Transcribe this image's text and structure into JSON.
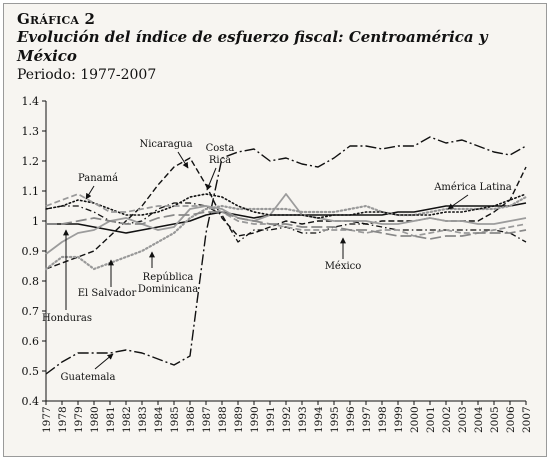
{
  "header": {
    "label": "Gráfica 2",
    "title": "Evolución del índice de esfuerzo fiscal: Centroamérica y México",
    "subtitle": "Periodo: 1977-2007"
  },
  "chart_data": {
    "type": "line",
    "ylim": [
      0.4,
      1.4
    ],
    "yticks": [
      "0.4",
      "0.5",
      "0.6",
      "0.7",
      "0.8",
      "0.9",
      "1",
      "1.1",
      "1.2",
      "1.3",
      "1.4"
    ],
    "x": [
      "1977",
      "1978",
      "1979",
      "1980",
      "1981",
      "1982",
      "1983",
      "1984",
      "1985",
      "1986",
      "1987",
      "1988",
      "1989",
      "1990",
      "1991",
      "1992",
      "1993",
      "1994",
      "1995",
      "1996",
      "1997",
      "1998",
      "1999",
      "2000",
      "2001",
      "2002",
      "2003",
      "2004",
      "2005",
      "2006",
      "2007"
    ],
    "grid": false,
    "series": [
      {
        "name": "América Latina",
        "style": "solid",
        "color": "#111111",
        "width": 1.6,
        "values": [
          0.99,
          0.99,
          0.99,
          0.98,
          0.97,
          0.96,
          0.97,
          0.98,
          0.99,
          1.0,
          1.02,
          1.03,
          1.02,
          1.01,
          1.02,
          1.02,
          1.02,
          1.02,
          1.02,
          1.02,
          1.02,
          1.02,
          1.03,
          1.03,
          1.04,
          1.05,
          1.05,
          1.05,
          1.05,
          1.05,
          1.06
        ]
      },
      {
        "name": "Guatemala",
        "style": "longdash-dot",
        "color": "#111111",
        "width": 1.4,
        "values": [
          0.49,
          0.53,
          0.56,
          0.56,
          0.56,
          0.57,
          0.56,
          0.54,
          0.52,
          0.55,
          0.96,
          1.21,
          1.23,
          1.24,
          1.2,
          1.21,
          1.19,
          1.18,
          1.21,
          1.25,
          1.25,
          1.24,
          1.25,
          1.25,
          1.28,
          1.26,
          1.27,
          1.25,
          1.23,
          1.22,
          1.25
        ]
      },
      {
        "name": "Nicaragua",
        "style": "dash",
        "color": "#111111",
        "width": 1.4,
        "values": [
          0.84,
          0.86,
          0.88,
          0.9,
          0.95,
          1.0,
          1.05,
          1.12,
          1.18,
          1.21,
          1.12,
          1.01,
          0.95,
          0.96,
          0.98,
          1.0,
          0.99,
          1.0,
          1.0,
          1.0,
          0.99,
          1.0,
          1.0,
          1.0,
          1.01,
          1.0,
          1.0,
          1.0,
          1.03,
          1.07,
          1.18
        ]
      },
      {
        "name": "Costa Rica",
        "style": "dashdot",
        "color": "#111111",
        "width": 1.3,
        "values": [
          1.04,
          1.05,
          1.05,
          1.03,
          1.0,
          0.99,
          1.0,
          1.04,
          1.06,
          1.06,
          1.05,
          1.02,
          0.93,
          0.97,
          0.97,
          0.98,
          0.96,
          0.96,
          0.98,
          0.99,
          0.99,
          0.98,
          0.97,
          0.97,
          0.97,
          0.97,
          0.97,
          0.97,
          0.97,
          0.96,
          0.93
        ]
      },
      {
        "name": "Panamá",
        "style": "solid",
        "color": "#9c9c9c",
        "width": 1.8,
        "values": [
          0.89,
          0.93,
          0.96,
          0.97,
          1.0,
          1.01,
          0.99,
          0.97,
          0.98,
          1.04,
          1.05,
          1.04,
          1.01,
          1.0,
          1.02,
          1.09,
          1.02,
          1.01,
          1.0,
          1.0,
          1.0,
          0.99,
          0.99,
          1.0,
          1.01,
          1.0,
          1.0,
          0.99,
          0.99,
          1.0,
          1.01
        ]
      },
      {
        "name": "El Salvador",
        "style": "dot",
        "color": "#999999",
        "width": 2.2,
        "values": [
          0.84,
          0.88,
          0.88,
          0.84,
          0.86,
          0.88,
          0.9,
          0.93,
          0.96,
          1.01,
          1.04,
          1.05,
          1.04,
          1.04,
          1.04,
          1.04,
          1.03,
          1.03,
          1.03,
          1.04,
          1.05,
          1.03,
          1.02,
          1.02,
          1.03,
          1.04,
          1.04,
          1.04,
          1.04,
          1.05,
          1.08
        ]
      },
      {
        "name": "Honduras",
        "style": "dot",
        "color": "#111111",
        "width": 1.6,
        "values": [
          1.04,
          1.05,
          1.07,
          1.06,
          1.04,
          1.02,
          1.02,
          1.03,
          1.05,
          1.08,
          1.09,
          1.08,
          1.05,
          1.03,
          1.02,
          1.02,
          1.02,
          1.01,
          1.02,
          1.02,
          1.03,
          1.03,
          1.02,
          1.02,
          1.02,
          1.03,
          1.03,
          1.04,
          1.05,
          1.07,
          1.09
        ]
      },
      {
        "name": "República Dominicana",
        "style": "dash",
        "color": "#999999",
        "width": 1.7,
        "values": [
          1.05,
          1.07,
          1.09,
          1.06,
          1.03,
          1.03,
          1.04,
          1.05,
          1.05,
          1.05,
          1.05,
          1.03,
          1.0,
          0.99,
          0.99,
          0.98,
          0.97,
          0.97,
          0.97,
          0.97,
          0.96,
          0.97,
          0.97,
          0.95,
          0.96,
          0.97,
          0.96,
          0.96,
          0.97,
          0.98,
          0.99
        ]
      },
      {
        "name": "México",
        "style": "longdash",
        "color": "#888888",
        "width": 1.7,
        "values": [
          0.99,
          0.99,
          1.0,
          1.01,
          1.0,
          0.99,
          0.99,
          1.01,
          1.02,
          1.02,
          1.03,
          1.03,
          1.01,
          1.0,
          0.99,
          0.99,
          0.98,
          0.98,
          0.98,
          0.97,
          0.97,
          0.96,
          0.95,
          0.95,
          0.94,
          0.95,
          0.95,
          0.96,
          0.96,
          0.96,
          0.97
        ]
      }
    ],
    "annotations": [
      {
        "text": "Nicaragua",
        "series": "Nicaragua"
      },
      {
        "text": "Costa",
        "series": "Costa Rica"
      },
      {
        "text": "Rica",
        "series": "Costa Rica"
      },
      {
        "text": "Panamá",
        "series": "Panamá"
      },
      {
        "text": "América Latina",
        "series": "América Latina"
      },
      {
        "text": "República",
        "series": "República Dominicana"
      },
      {
        "text": "Dominicana",
        "series": "República Dominicana"
      },
      {
        "text": "El Salvador",
        "series": "El Salvador"
      },
      {
        "text": "México",
        "series": "México"
      },
      {
        "text": "Honduras",
        "series": "Honduras"
      },
      {
        "text": "Guatemala",
        "series": "Guatemala"
      }
    ]
  }
}
